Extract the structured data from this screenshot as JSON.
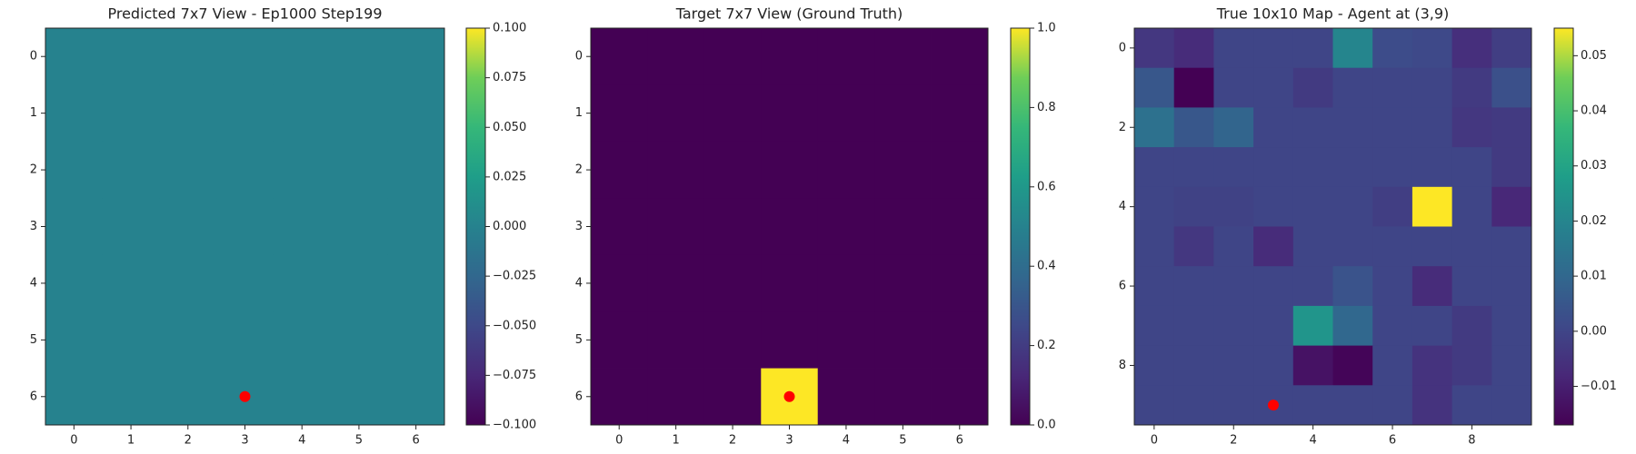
{
  "chart_data": [
    {
      "type": "heatmap",
      "title": "Predicted 7x7 View - Ep1000 Step199",
      "colormap": "viridis",
      "z": [
        [
          0,
          0,
          0,
          0,
          0,
          0,
          0
        ],
        [
          0,
          0,
          0,
          0,
          0,
          0,
          0
        ],
        [
          0,
          0,
          0,
          0,
          0,
          0,
          0
        ],
        [
          0,
          0,
          0,
          0,
          0,
          0,
          0
        ],
        [
          0,
          0,
          0,
          0,
          0,
          0,
          0
        ],
        [
          0,
          0,
          0,
          0,
          0,
          0,
          0
        ],
        [
          0,
          0,
          0,
          0,
          0,
          0,
          0
        ]
      ],
      "xlim": [
        -0.5,
        6.5
      ],
      "ylim": [
        6.5,
        -0.5
      ],
      "xticks": [
        0,
        1,
        2,
        3,
        4,
        5,
        6
      ],
      "yticks": [
        0,
        1,
        2,
        3,
        4,
        5,
        6
      ],
      "clim": [
        -0.1,
        0.1
      ],
      "cticks": [
        {
          "value": -0.1,
          "label": "−0.100"
        },
        {
          "value": -0.075,
          "label": "−0.075"
        },
        {
          "value": -0.05,
          "label": "−0.050"
        },
        {
          "value": -0.025,
          "label": "−0.025"
        },
        {
          "value": 0,
          "label": "0.000"
        },
        {
          "value": 0.025,
          "label": "0.025"
        },
        {
          "value": 0.05,
          "label": "0.050"
        },
        {
          "value": 0.075,
          "label": "0.075"
        },
        {
          "value": 0.1,
          "label": "0.100"
        }
      ],
      "marker": {
        "x": 3,
        "y": 6,
        "color": "#ff0000"
      }
    },
    {
      "type": "heatmap",
      "title": "Target 7x7 View (Ground Truth)",
      "colormap": "viridis",
      "z": [
        [
          0,
          0,
          0,
          0,
          0,
          0,
          0
        ],
        [
          0,
          0,
          0,
          0,
          0,
          0,
          0
        ],
        [
          0,
          0,
          0,
          0,
          0,
          0,
          0
        ],
        [
          0,
          0,
          0,
          0,
          0,
          0,
          0
        ],
        [
          0,
          0,
          0,
          0,
          0,
          0,
          0
        ],
        [
          0,
          0,
          0,
          0,
          0,
          0,
          0
        ],
        [
          0,
          0,
          0,
          1,
          0,
          0,
          0
        ]
      ],
      "xlim": [
        -0.5,
        6.5
      ],
      "ylim": [
        6.5,
        -0.5
      ],
      "xticks": [
        0,
        1,
        2,
        3,
        4,
        5,
        6
      ],
      "yticks": [
        0,
        1,
        2,
        3,
        4,
        5,
        6
      ],
      "clim": [
        0,
        1
      ],
      "cticks": [
        {
          "value": 0,
          "label": "0.0"
        },
        {
          "value": 0.2,
          "label": "0.2"
        },
        {
          "value": 0.4,
          "label": "0.4"
        },
        {
          "value": 0.6,
          "label": "0.6"
        },
        {
          "value": 0.8,
          "label": "0.8"
        },
        {
          "value": 1,
          "label": "1.0"
        }
      ],
      "marker": {
        "x": 3,
        "y": 6,
        "color": "#ff0000"
      }
    },
    {
      "type": "heatmap",
      "title": "True 10x10 Map - Agent at (3,9)",
      "colormap": "viridis",
      "z": [
        [
          -0.004,
          -0.007,
          0,
          0,
          0,
          0.02,
          0.002,
          0.001,
          -0.006,
          -0.002
        ],
        [
          0.005,
          -0.017,
          0,
          0,
          -0.003,
          0,
          0,
          0,
          -0.003,
          0.003
        ],
        [
          0.013,
          0.005,
          0.009,
          0,
          0,
          0,
          0,
          0,
          -0.004,
          -0.003
        ],
        [
          0,
          0,
          0,
          0,
          0,
          0,
          0,
          0,
          0,
          -0.003
        ],
        [
          0,
          -0.001,
          -0.001,
          0,
          0,
          0,
          -0.002,
          0.055,
          0,
          -0.008
        ],
        [
          0,
          -0.004,
          0,
          -0.007,
          0,
          0,
          0,
          0,
          0,
          0
        ],
        [
          0,
          0,
          0,
          0,
          0,
          0.004,
          0,
          -0.007,
          0,
          0
        ],
        [
          0,
          0,
          0,
          0,
          0.025,
          0.01,
          0,
          0,
          -0.003,
          0
        ],
        [
          0,
          0,
          0,
          0,
          -0.013,
          -0.016,
          0,
          -0.005,
          -0.003,
          0
        ],
        [
          0,
          0,
          0,
          0,
          0,
          0,
          0,
          -0.005,
          0,
          0
        ]
      ],
      "xlim": [
        -0.5,
        9.5
      ],
      "ylim": [
        9.5,
        -0.5
      ],
      "xticks": [
        0,
        2,
        4,
        6,
        8
      ],
      "yticks": [
        0,
        2,
        4,
        6,
        8
      ],
      "clim": [
        -0.017,
        0.055
      ],
      "cticks": [
        {
          "value": -0.01,
          "label": "−0.01"
        },
        {
          "value": 0,
          "label": "0.00"
        },
        0.01,
        0.02,
        0.03,
        0.04,
        0.05
      ],
      "marker": {
        "x": 3,
        "y": 9,
        "color": "#ff0000"
      }
    }
  ]
}
